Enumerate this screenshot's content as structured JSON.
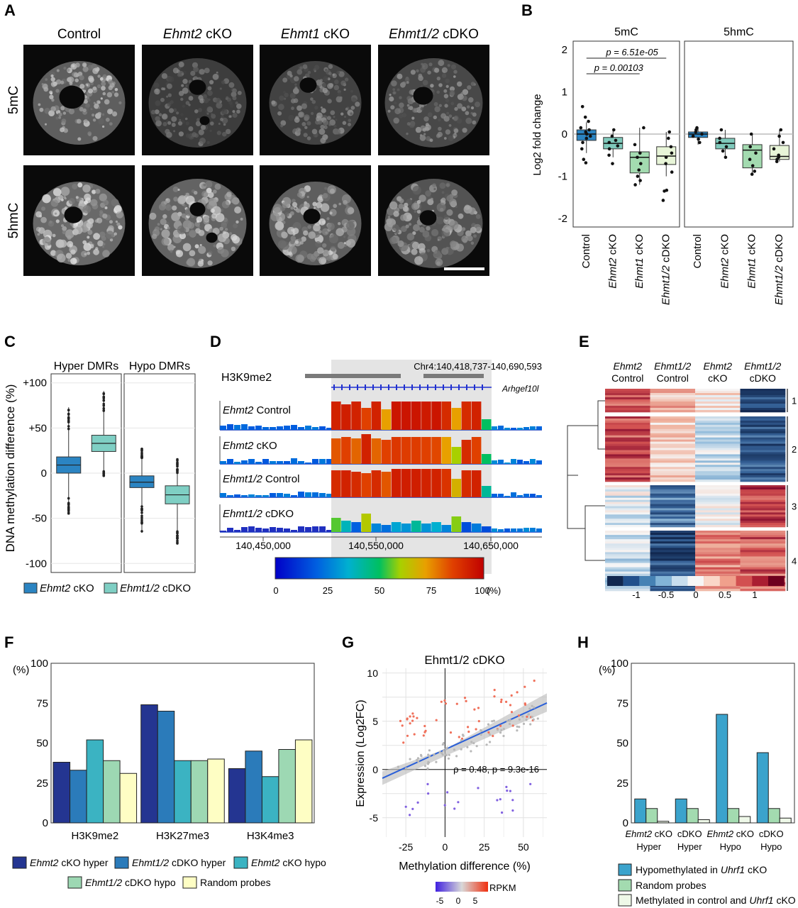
{
  "panels": {
    "a": {
      "letter": "A",
      "columns": [
        "Control",
        "Ehmt2 cKO",
        "Ehmt1 cKO",
        "Ehmt1/2 cDKO"
      ],
      "rows": [
        "5mC",
        "5hmC"
      ]
    },
    "b": {
      "letter": "B",
      "facets": [
        "5mC",
        "5hmC"
      ],
      "ylabel": "Log2 fold change",
      "yticks": [
        "2",
        "1",
        "0",
        "-1",
        "-2"
      ],
      "groups": [
        "Control",
        "Ehmt2 cKO",
        "Ehmt1 cKO",
        "Ehmt1/2 cDKO"
      ],
      "pvals": [
        "p = 6.51e-05",
        "p = 0.00103"
      ]
    },
    "c": {
      "letter": "C",
      "facets": [
        "Hyper DMRs",
        "Hypo DMRs"
      ],
      "ylabel": "DNA methylation difference (%)",
      "yticks": [
        "+100",
        "+50",
        "0",
        "-50",
        "-100"
      ],
      "legend": [
        "Ehmt2 cKO",
        "Ehmt1/2 cDKO"
      ]
    },
    "d": {
      "letter": "D",
      "h3k9": "H3K9me2",
      "locus": "Chr4:140,418,737-140,690,593",
      "gene": "Arhgef10l",
      "tracks": [
        "Ehmt2 Control",
        "Ehmt2 cKO",
        "Ehmt1/2 Control",
        "Ehmt1/2 cDKO"
      ],
      "xticks": [
        "140,450,000",
        "140,550,000",
        "140,650,000"
      ],
      "scale_ticks": [
        "0",
        "25",
        "50",
        "75",
        "100"
      ],
      "scale_unit": "(%)"
    },
    "e": {
      "letter": "E",
      "columns": [
        [
          "Ehmt2",
          "Control"
        ],
        [
          "Ehmt1/2",
          "Control"
        ],
        [
          "Ehmt2",
          "cKO"
        ],
        [
          "Ehmt1/2",
          "cDKO"
        ]
      ],
      "clusters": [
        "1",
        "2",
        "3",
        "4"
      ],
      "scale_ticks": [
        "-1",
        "-0.5",
        "0",
        "0.5",
        "1"
      ]
    },
    "f": {
      "letter": "F",
      "ylabel": "(%)",
      "yticks": [
        "100",
        "75",
        "50",
        "25",
        "0"
      ],
      "legend": [
        "Ehmt2 cKO hyper",
        "Ehmt1/2 cDKO hyper",
        "Ehmt2 cKO hypo",
        "Ehmt1/2 cDKO hypo",
        "Random probes"
      ]
    },
    "g": {
      "letter": "G",
      "title": "Ehmt1/2 cDKO",
      "ylabel": "Expression (Log2FC)",
      "xlabel": "Methylation difference (%)",
      "annotation": "ρ = 0.48, p = 9.3e-16",
      "xticks": [
        "-25",
        "0",
        "25",
        "50"
      ],
      "yticks": [
        "10",
        "5",
        "0",
        "-5"
      ],
      "colorbar_label": "RPKM",
      "colorbar_ticks": [
        "-5",
        "0",
        "5"
      ]
    },
    "h": {
      "letter": "H",
      "ylabel": "(%)",
      "yticks": [
        "100",
        "75",
        "50",
        "25",
        "0"
      ],
      "categories": [
        [
          "Ehmt2 cKO",
          "Hyper"
        ],
        [
          "cDKO",
          "Hyper"
        ],
        [
          "Ehmt2 cKO",
          "Hypo"
        ],
        [
          "cDKO",
          "Hypo"
        ]
      ],
      "legend": [
        "Hypomethylated in Uhrf1 cKO",
        "Random probes",
        "Methylated in control and Uhrf1 cKO"
      ]
    }
  },
  "chart_data": [
    {
      "panel": "F",
      "type": "bar",
      "categories": [
        "H3K9me2",
        "H3K27me3",
        "H3K4me3"
      ],
      "ylim": [
        0,
        100
      ],
      "series": [
        {
          "name": "Ehmt2 cKO hyper",
          "values": [
            38,
            74,
            34
          ],
          "color": "#243591"
        },
        {
          "name": "Ehmt1/2 cDKO hyper",
          "values": [
            33,
            70,
            45
          ],
          "color": "#2b7bba"
        },
        {
          "name": "Ehmt2 cKO hypo",
          "values": [
            52,
            39,
            29
          ],
          "color": "#3bb3c2"
        },
        {
          "name": "Ehmt1/2 cDKO hypo",
          "values": [
            39,
            39,
            46
          ],
          "color": "#9dd8b3"
        },
        {
          "name": "Random probes",
          "values": [
            31,
            40,
            52
          ],
          "color": "#fefec4"
        }
      ]
    },
    {
      "panel": "H",
      "type": "bar",
      "categories": [
        "Ehmt2 cKO Hyper",
        "cDKO Hyper",
        "Ehmt2 cKO Hypo",
        "cDKO Hypo"
      ],
      "ylim": [
        0,
        100
      ],
      "series": [
        {
          "name": "Hypomethylated in Uhrf1 cKO",
          "values": [
            15,
            15,
            68,
            44
          ],
          "color": "#3ba3cc"
        },
        {
          "name": "Random probes",
          "values": [
            9,
            9,
            9,
            9
          ],
          "color": "#a3dbb0"
        },
        {
          "name": "Methylated in control and Uhrf1 cKO",
          "values": [
            1,
            2,
            4,
            3
          ],
          "color": "#eef8e8"
        }
      ]
    },
    {
      "panel": "B",
      "type": "box",
      "ylim": [
        -2.2,
        2.2
      ],
      "facets": [
        {
          "name": "5mC",
          "boxes": [
            {
              "q1": -0.15,
              "median": 0.0,
              "q3": 0.1,
              "min": -0.45,
              "max": 0.28,
              "color": "#2b84c2",
              "points": [
                0.65,
                0.4,
                0.3,
                0.15,
                0.1,
                0.05,
                0.0,
                -0.05,
                -0.1,
                -0.2,
                -0.35,
                -0.6,
                -0.68
              ]
            },
            {
              "q1": -0.35,
              "median": -0.22,
              "q3": -0.08,
              "min": -0.55,
              "max": 0.1,
              "color": "#7fc9bb",
              "points": [
                0.1,
                -0.05,
                -0.15,
                -0.2,
                -0.28,
                -0.35,
                -0.5,
                -0.7
              ]
            },
            {
              "q1": -0.92,
              "median": -0.55,
              "q3": -0.42,
              "min": -1.2,
              "max": 0.15,
              "color": "#a3dbb0",
              "points": [
                0.15,
                -0.25,
                -0.45,
                -0.55,
                -0.7,
                -0.85,
                -1.0,
                -1.1,
                -1.2
              ]
            },
            {
              "q1": -0.72,
              "median": -0.52,
              "q3": -0.3,
              "min": -1.0,
              "max": 0.05,
              "color": "#e8f5d8",
              "points": [
                0.05,
                -0.1,
                -0.3,
                -0.45,
                -0.55,
                -0.7,
                -0.9,
                -1.33,
                -1.35,
                -1.57
              ]
            }
          ]
        },
        {
          "name": "5hmC",
          "boxes": [
            {
              "q1": -0.08,
              "median": 0.0,
              "q3": 0.05,
              "min": -0.25,
              "max": 0.15,
              "color": "#2b84c2",
              "points": [
                0.15,
                0.1,
                0.05,
                0.0,
                -0.05,
                -0.12,
                -0.2
              ]
            },
            {
              "q1": -0.35,
              "median": -0.22,
              "q3": -0.1,
              "min": -0.55,
              "max": 0.1,
              "color": "#7fc9bb",
              "points": [
                0.1,
                -0.1,
                -0.2,
                -0.3,
                -0.4,
                -0.55
              ]
            },
            {
              "q1": -0.8,
              "median": -0.38,
              "q3": -0.25,
              "min": -0.95,
              "max": 0.0,
              "color": "#a3dbb0",
              "points": [
                0.0,
                -0.3,
                -0.45,
                -0.6,
                -0.75,
                -0.88,
                -0.95
              ]
            },
            {
              "q1": -0.6,
              "median": -0.53,
              "q3": -0.27,
              "min": -0.65,
              "max": 0.1,
              "color": "#e8f5d8",
              "points": [
                0.1,
                -0.05,
                -0.2,
                -0.35,
                -0.5,
                -0.55,
                -0.6,
                -0.65
              ]
            }
          ]
        }
      ]
    },
    {
      "panel": "C",
      "type": "box",
      "ylim": [
        -110,
        110
      ],
      "facets": [
        {
          "name": "Hyper DMRs",
          "boxes": [
            {
              "q1": 0,
              "median": 9,
              "q3": 18,
              "min": -45,
              "max": 73,
              "color": "#2b84c2"
            },
            {
              "q1": 24,
              "median": 33,
              "q3": 42,
              "min": 2,
              "max": 91,
              "color": "#7fcfc4"
            }
          ]
        },
        {
          "name": "Hypo DMRs",
          "boxes": [
            {
              "q1": -16,
              "median": -10,
              "q3": -3,
              "min": -66,
              "max": 28,
              "color": "#2b84c2"
            },
            {
              "q1": -34,
              "median": -24,
              "q3": -14,
              "min": -78,
              "max": 0,
              "color": "#7fcfc4"
            }
          ]
        }
      ]
    }
  ]
}
